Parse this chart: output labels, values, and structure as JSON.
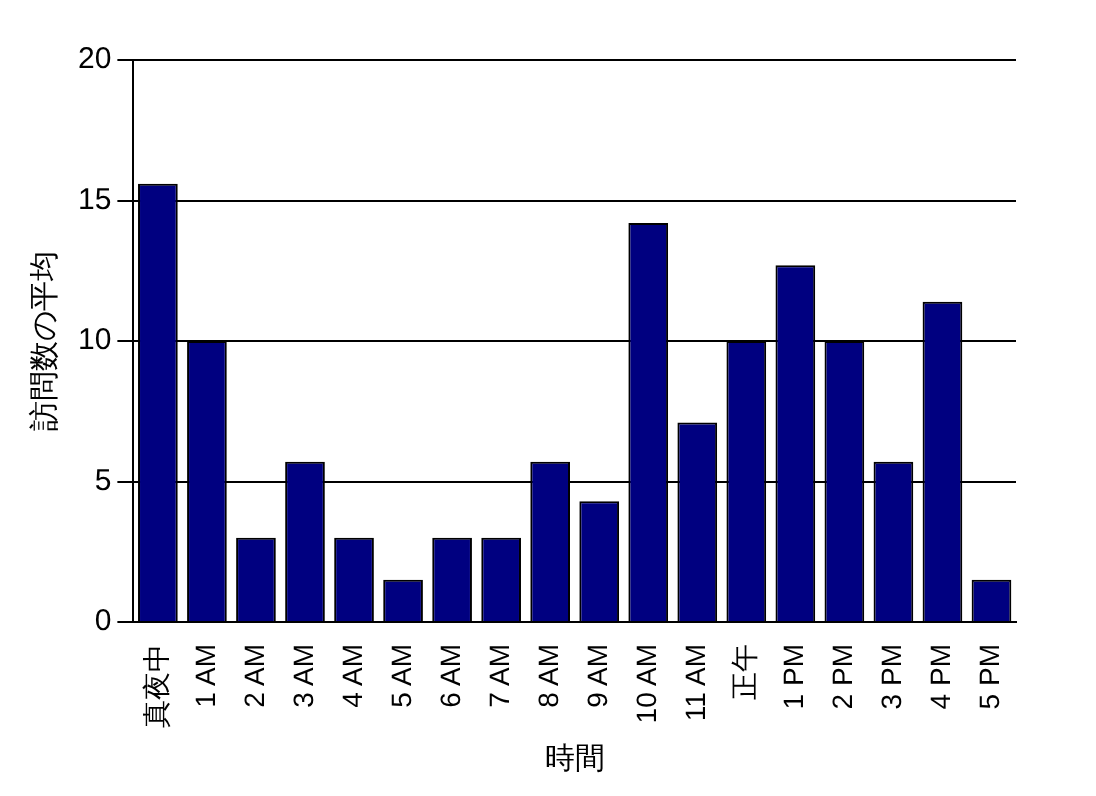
{
  "chart_data": {
    "type": "bar",
    "xlabel": "時間",
    "ylabel": "訪問数の平均",
    "categories": [
      "真夜中",
      "1 AM",
      "2 AM",
      "3 AM",
      "4 AM",
      "5 AM",
      "6 AM",
      "7 AM",
      "8 AM",
      "9 AM",
      "10 AM",
      "11 AM",
      "正午",
      "1 PM",
      "2 PM",
      "3 PM",
      "4 PM",
      "5 PM"
    ],
    "values": [
      15.6,
      10,
      3,
      5.7,
      3,
      1.5,
      3,
      3,
      5.7,
      4.3,
      14.2,
      7.1,
      10,
      12.7,
      10,
      5.7,
      11.4,
      1.5
    ],
    "color": "#000080",
    "ylim": [
      0,
      20
    ],
    "yticks": [
      0,
      5,
      10,
      15,
      20
    ],
    "grid": "y",
    "legend": false
  }
}
